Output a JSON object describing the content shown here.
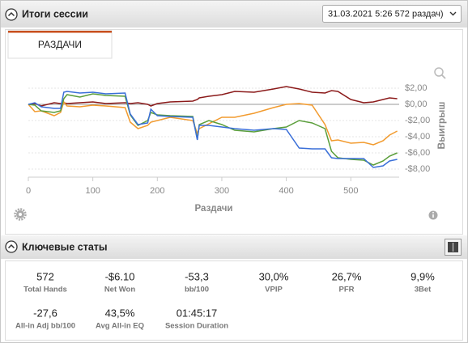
{
  "header": {
    "title": "Итоги сессии",
    "dropdown": "31.03.2021 5:26 572 раздач)"
  },
  "tab": "РАЗДАЧИ",
  "chart_data": {
    "type": "line",
    "xlabel": "Раздачи",
    "ylabel": "Выигрыш",
    "x": [
      0,
      10,
      20,
      40,
      50,
      55,
      60,
      80,
      100,
      120,
      150,
      158,
      170,
      185,
      190,
      200,
      220,
      255,
      262,
      265,
      280,
      300,
      320,
      350,
      380,
      400,
      420,
      440,
      460,
      470,
      480,
      500,
      520,
      535,
      550,
      560,
      572
    ],
    "series": [
      {
        "color": "#8b1a1a",
        "values": [
          0,
          0.1,
          -0.2,
          0.2,
          0.1,
          0.2,
          0.1,
          0.2,
          0.3,
          0.1,
          0.2,
          0.1,
          0.2,
          0.0,
          -0.2,
          0.1,
          0.3,
          0.4,
          0.6,
          0.8,
          1.0,
          1.2,
          1.6,
          1.5,
          1.9,
          2.2,
          1.9,
          1.5,
          1.4,
          1.7,
          1.6,
          0.6,
          0.2,
          0.3,
          0.6,
          0.8,
          0.7
        ]
      },
      {
        "color": "#f29b2f",
        "values": [
          0,
          -0.9,
          -0.8,
          -1.4,
          -1.0,
          0.3,
          -0.2,
          -0.3,
          -0.1,
          -0.2,
          -0.4,
          -2.2,
          -3.0,
          -2.6,
          -2.2,
          -2.0,
          -1.6,
          -2.0,
          -3.6,
          -3.0,
          -2.4,
          -1.6,
          -1.6,
          -1.1,
          -0.4,
          0.0,
          0.1,
          -0.1,
          -2.5,
          -4.5,
          -4.4,
          -4.8,
          -4.7,
          -5.0,
          -4.5,
          -3.8,
          -3.3
        ]
      },
      {
        "color": "#5a9e3a",
        "values": [
          0,
          -0.1,
          -0.8,
          -1.0,
          -0.8,
          0.7,
          1.2,
          0.9,
          1.3,
          1.1,
          1.0,
          -1.3,
          -2.6,
          -2.0,
          -1.0,
          -1.3,
          -1.4,
          -1.5,
          -4.3,
          -2.5,
          -2.0,
          -2.5,
          -3.2,
          -3.4,
          -3.0,
          -2.8,
          -2.0,
          -2.3,
          -3.0,
          -5.8,
          -6.6,
          -6.8,
          -6.9,
          -7.5,
          -7.0,
          -6.4,
          -6.0
        ]
      },
      {
        "color": "#3a6fd8",
        "values": [
          0,
          0.2,
          -0.3,
          -0.5,
          -0.5,
          1.5,
          1.6,
          1.4,
          1.5,
          1.3,
          1.4,
          -1.2,
          -2.5,
          -2.3,
          -0.6,
          -1.4,
          -1.5,
          -1.6,
          -4.4,
          -2.6,
          -2.6,
          -2.8,
          -3.0,
          -3.2,
          -3.0,
          -3.1,
          -5.4,
          -5.5,
          -5.5,
          -6.6,
          -6.7,
          -6.7,
          -6.7,
          -7.8,
          -7.6,
          -7.0,
          -6.8
        ]
      }
    ],
    "xlim": [
      0,
      575
    ],
    "ylim": [
      -9,
      3.4
    ],
    "xticks": [
      0,
      100,
      200,
      300,
      400,
      500
    ],
    "yticks": [
      {
        "value": 2,
        "label": "$2,00"
      },
      {
        "value": 0,
        "label": "$0,00"
      },
      {
        "value": -2,
        "label": "-$2,00"
      },
      {
        "value": -4,
        "label": "-$4,00"
      },
      {
        "value": -6,
        "label": "-$6,00"
      },
      {
        "value": -8,
        "label": "-$8,00"
      }
    ],
    "grid": true
  },
  "stats_header": "Ключевые статы",
  "stats": [
    {
      "value": "572",
      "label": "Total Hands"
    },
    {
      "value": "-$6.10",
      "label": "Net Won"
    },
    {
      "value": "-53,3",
      "label": "bb/100"
    },
    {
      "value": "30,0%",
      "label": "VPIP"
    },
    {
      "value": "26,7%",
      "label": "PFR"
    },
    {
      "value": "9,9%",
      "label": "3Bet"
    },
    {
      "value": "-27,6",
      "label": "All-in Adj bb/100"
    },
    {
      "value": "43,5%",
      "label": "Avg All-in EQ"
    },
    {
      "value": "01:45:17",
      "label": "Session Duration"
    }
  ]
}
